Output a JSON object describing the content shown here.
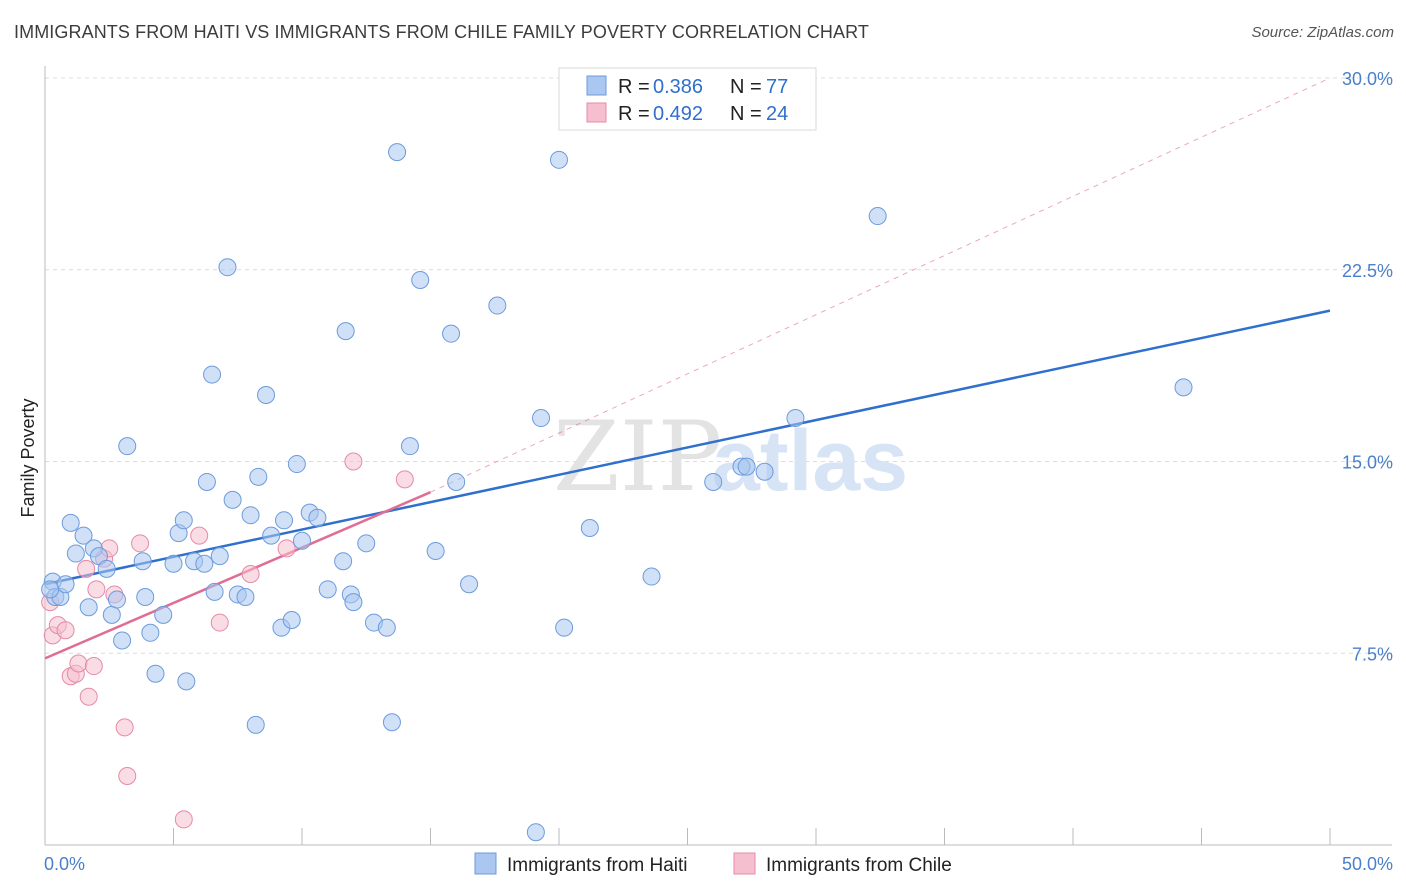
{
  "title": "IMMIGRANTS FROM HAITI VS IMMIGRANTS FROM CHILE FAMILY POVERTY CORRELATION CHART",
  "source": "Source: ZipAtlas.com",
  "watermark": {
    "zip": "ZIP",
    "atlas": "atlas"
  },
  "colors": {
    "haiti_fill": "#a9c7f0",
    "haiti_stroke": "#6c9bdc",
    "haiti_line": "#2f6fce",
    "chile_fill": "#f6bfd0",
    "chile_stroke": "#e58aa8",
    "chile_line": "#e06d93",
    "grid": "#dcdcdc",
    "tick_text": "#4a7fc9"
  },
  "chart_data": {
    "type": "scatter",
    "ylabel": "Family Poverty",
    "xlim": [
      0,
      50
    ],
    "ylim": [
      0,
      30
    ],
    "x_tick_labels": [
      {
        "v": 0,
        "label": "0.0%"
      },
      {
        "v": 50,
        "label": "50.0%"
      }
    ],
    "y_tick_labels": [
      {
        "v": 7.5,
        "label": "7.5%"
      },
      {
        "v": 15,
        "label": "15.0%"
      },
      {
        "v": 22.5,
        "label": "22.5%"
      },
      {
        "v": 30,
        "label": "30.0%"
      }
    ],
    "legend_top": [
      {
        "series": "haiti",
        "r_label": "R =",
        "r": "0.386",
        "n_label": "N =",
        "n": "77"
      },
      {
        "series": "chile",
        "r_label": "R =",
        "r": "0.492",
        "n_label": "N =",
        "n": "24"
      }
    ],
    "series": [
      {
        "name": "Immigrants from Haiti",
        "key": "haiti",
        "trend": {
          "x0": 0,
          "y0": 10.2,
          "x1": 50,
          "y1": 20.9,
          "dashed": false
        },
        "points": [
          [
            0.3,
            10.3
          ],
          [
            0.4,
            9.7
          ],
          [
            0.6,
            9.7
          ],
          [
            0.8,
            10.2
          ],
          [
            1.0,
            12.6
          ],
          [
            1.2,
            11.4
          ],
          [
            1.5,
            12.1
          ],
          [
            1.7,
            9.3
          ],
          [
            1.9,
            11.6
          ],
          [
            2.1,
            11.3
          ],
          [
            2.4,
            10.8
          ],
          [
            2.6,
            9.0
          ],
          [
            2.8,
            9.6
          ],
          [
            3.0,
            8.0
          ],
          [
            3.2,
            15.6
          ],
          [
            3.8,
            11.1
          ],
          [
            3.9,
            9.7
          ],
          [
            4.1,
            8.3
          ],
          [
            4.3,
            6.7
          ],
          [
            4.6,
            9.0
          ],
          [
            5.0,
            11.0
          ],
          [
            5.2,
            12.2
          ],
          [
            5.4,
            12.7
          ],
          [
            5.5,
            6.4
          ],
          [
            5.8,
            11.1
          ],
          [
            6.2,
            11.0
          ],
          [
            6.3,
            14.2
          ],
          [
            6.5,
            18.4
          ],
          [
            6.6,
            9.9
          ],
          [
            6.8,
            11.3
          ],
          [
            7.1,
            22.6
          ],
          [
            7.3,
            13.5
          ],
          [
            7.5,
            9.8
          ],
          [
            7.8,
            9.7
          ],
          [
            8.0,
            12.9
          ],
          [
            8.2,
            4.7
          ],
          [
            8.3,
            14.4
          ],
          [
            8.6,
            17.6
          ],
          [
            8.8,
            12.1
          ],
          [
            9.2,
            8.5
          ],
          [
            9.3,
            12.7
          ],
          [
            9.6,
            8.8
          ],
          [
            9.8,
            14.9
          ],
          [
            10.0,
            11.9
          ],
          [
            10.3,
            13.0
          ],
          [
            10.6,
            12.8
          ],
          [
            11.0,
            10.0
          ],
          [
            11.6,
            11.1
          ],
          [
            11.7,
            20.1
          ],
          [
            11.9,
            9.8
          ],
          [
            12.0,
            9.5
          ],
          [
            12.5,
            11.8
          ],
          [
            12.8,
            8.7
          ],
          [
            13.3,
            8.5
          ],
          [
            13.5,
            4.8
          ],
          [
            13.7,
            27.1
          ],
          [
            14.2,
            15.6
          ],
          [
            14.6,
            22.1
          ],
          [
            15.2,
            11.5
          ],
          [
            15.8,
            20.0
          ],
          [
            16.0,
            14.2
          ],
          [
            16.5,
            10.2
          ],
          [
            17.6,
            21.1
          ],
          [
            19.1,
            0.5
          ],
          [
            19.3,
            16.7
          ],
          [
            20.0,
            26.8
          ],
          [
            20.2,
            8.5
          ],
          [
            21.2,
            12.4
          ],
          [
            23.6,
            10.5
          ],
          [
            26.0,
            14.2
          ],
          [
            27.1,
            14.8
          ],
          [
            27.3,
            14.8
          ],
          [
            28.0,
            14.6
          ],
          [
            29.2,
            16.7
          ],
          [
            32.4,
            24.6
          ],
          [
            44.3,
            17.9
          ],
          [
            0.2,
            10.0
          ]
        ]
      },
      {
        "name": "Immigrants from Chile",
        "key": "chile",
        "trend": {
          "x0": 0,
          "y0": 7.3,
          "x1": 15,
          "y1": 13.8,
          "dashed": false,
          "extension": {
            "x0": 15,
            "y0": 13.8,
            "x1": 50,
            "y1": 30.0,
            "dashed": true
          }
        },
        "points": [
          [
            0.2,
            9.5
          ],
          [
            0.3,
            8.2
          ],
          [
            0.5,
            8.6
          ],
          [
            0.8,
            8.4
          ],
          [
            1.0,
            6.6
          ],
          [
            1.2,
            6.7
          ],
          [
            1.3,
            7.1
          ],
          [
            1.6,
            10.8
          ],
          [
            1.7,
            5.8
          ],
          [
            1.9,
            7.0
          ],
          [
            2.0,
            10.0
          ],
          [
            2.3,
            11.2
          ],
          [
            2.5,
            11.6
          ],
          [
            2.7,
            9.8
          ],
          [
            3.1,
            4.6
          ],
          [
            3.2,
            2.7
          ],
          [
            3.7,
            11.8
          ],
          [
            5.4,
            1.0
          ],
          [
            6.0,
            12.1
          ],
          [
            6.8,
            8.7
          ],
          [
            8.0,
            10.6
          ],
          [
            9.4,
            11.6
          ],
          [
            12.0,
            15.0
          ],
          [
            14.0,
            14.3
          ]
        ]
      }
    ]
  }
}
